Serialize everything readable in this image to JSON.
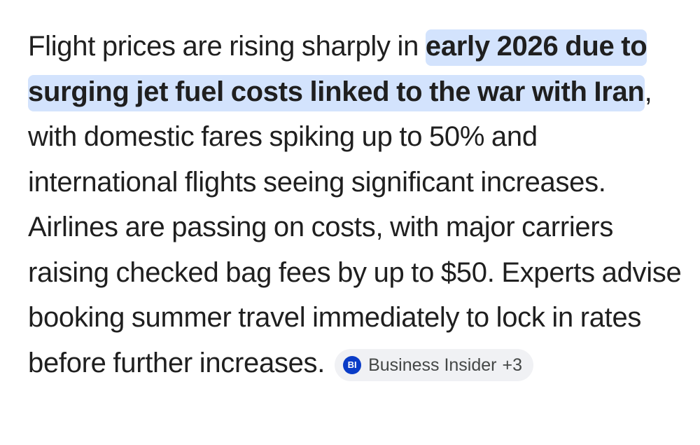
{
  "answer": {
    "text_before": "Flight prices are rising sharply in ",
    "highlight": "early 2026 due to surging jet fuel costs linked to the war with Iran",
    "text_after": ", with domestic fares spiking up to 50% and international flights seeing significant increases. Airlines are passing on costs, with major carriers raising checked bag fees by up to $50. Experts advise booking summer travel immediately to lock in rates before further increases."
  },
  "source_chip": {
    "icon_text": "BI",
    "label": "Business Insider",
    "count": "+3"
  },
  "colors": {
    "text": "#1f1f1f",
    "highlight": "#d3e3fd",
    "chip_background": "#f0f1f4",
    "chip_icon": "#0a3cc7",
    "chip_text": "#444746"
  }
}
